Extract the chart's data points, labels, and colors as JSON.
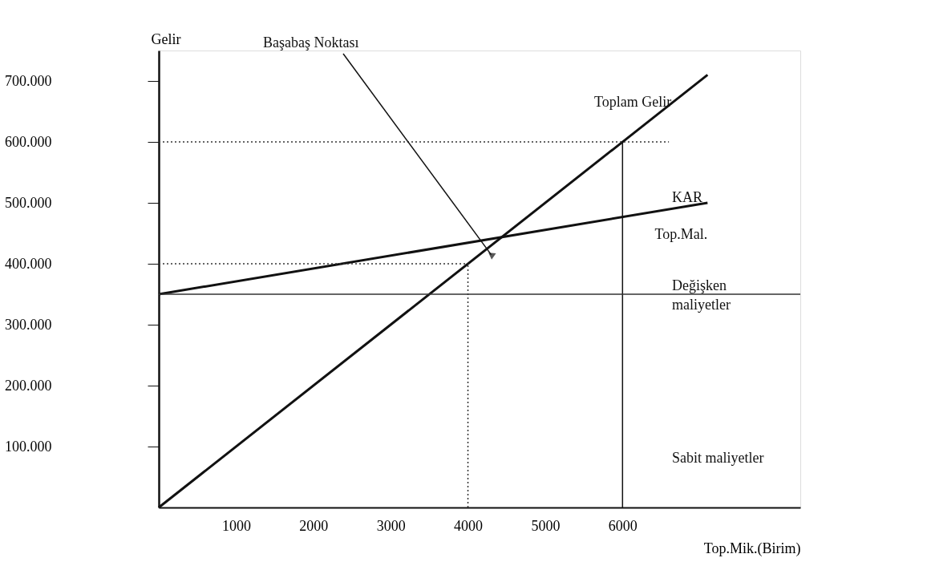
{
  "chart_data": {
    "type": "line",
    "xlabel": "Top.Mik.(Birim)",
    "ylabel": "Gelir",
    "xlim": [
      0,
      8300
    ],
    "ylim": [
      0,
      750000
    ],
    "xticks": [
      1000,
      2000,
      3000,
      4000,
      5000,
      6000
    ],
    "yticks": [
      {
        "value": 100000,
        "label": "100.000"
      },
      {
        "value": 200000,
        "label": "200.000"
      },
      {
        "value": 300000,
        "label": "300.000"
      },
      {
        "value": 400000,
        "label": "400.000"
      },
      {
        "value": 500000,
        "label": "500.000"
      },
      {
        "value": 600000,
        "label": "600.000"
      },
      {
        "value": 700000,
        "label": "700.000"
      }
    ],
    "grid": false,
    "legend": false,
    "marker": "none",
    "series": [
      {
        "name": "Toplam Gelir",
        "color": "#111111",
        "x": [
          0,
          7100
        ],
        "values": [
          0,
          710000
        ],
        "line_style": "solid"
      },
      {
        "name": "Top.Mal.",
        "color": "#111111",
        "x": [
          0,
          7100
        ],
        "values": [
          350000,
          500000
        ],
        "line_style": "solid"
      },
      {
        "color": "#333333",
        "x": [
          0,
          6600
        ],
        "values": [
          600000,
          600000
        ],
        "line_style": "dotted"
      },
      {
        "color": "#333333",
        "x": [
          0,
          4000
        ],
        "values": [
          400000,
          400000
        ],
        "line_style": "dotted"
      },
      {
        "color": "#333333",
        "x": [
          4000,
          4000
        ],
        "values": [
          0,
          400000
        ],
        "line_style": "dotted"
      },
      {
        "color": "#111111",
        "x": [
          6000,
          6000
        ],
        "values": [
          0,
          600000
        ],
        "line_style": "solid"
      }
    ],
    "ref_lines": [
      {
        "axis": "y",
        "value": 350000,
        "color": "#333333",
        "line_style": "solid"
      }
    ],
    "annotations": [
      {
        "text": "Başabaş Noktası",
        "x": 4300,
        "y": 415000
      },
      "KAR",
      "Değişken maliyetler",
      "Sabit maliyetler"
    ]
  }
}
